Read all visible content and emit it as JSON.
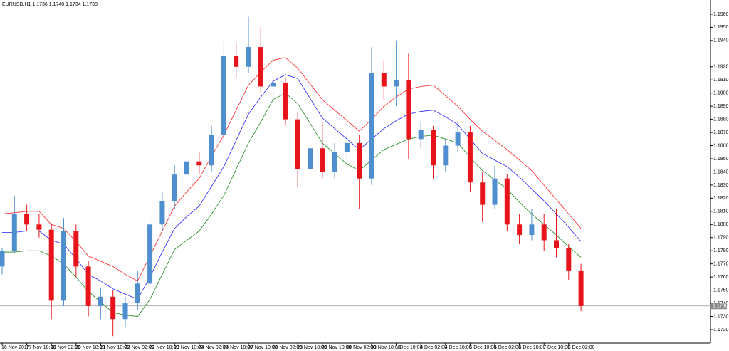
{
  "chart_data": {
    "type": "candlestick",
    "title": "EURUSD,H1  1.1736 1.1740 1.1734 1.1738",
    "categories": [
      "16 Nov 2017",
      null,
      "17 Nov 10:00",
      null,
      "20 Nov 02:00",
      null,
      "20 Nov 18:00",
      null,
      "21 Nov 10:00",
      null,
      "22 Nov 02:00",
      null,
      "22 Nov 18:00",
      null,
      "23 Nov 10:00",
      null,
      "24 Nov 02:00",
      null,
      "24 Nov 18:00",
      null,
      "27 Nov 10:00",
      null,
      "28 Nov 02:00",
      null,
      "28 Nov 18:00",
      null,
      "29 Nov 10:00",
      null,
      "30 Nov 02:00",
      null,
      "30 Nov 18:00",
      null,
      "1 Dec 10:00",
      null,
      "4 Dec 02:00",
      null,
      "4 Dec 18:00",
      null,
      "5 Dec 10:00",
      null,
      "6 Dec 02:00",
      null,
      "6 Dec 18:00",
      null,
      "7 Dec 10:00",
      null,
      "8 Dec 02:00",
      null
    ],
    "open": [
      1.1768,
      1.178,
      1.1808,
      1.18,
      1.1796,
      1.1742,
      1.1795,
      1.1768,
      1.1738,
      1.1745,
      1.1728,
      1.174,
      1.1755,
      1.18,
      1.1818,
      1.1838,
      1.1848,
      1.1845,
      1.1868,
      1.1928,
      1.192,
      1.1935,
      1.1905,
      1.1908,
      1.188,
      1.1842,
      1.1858,
      1.184,
      1.1855,
      1.1862,
      1.1835,
      1.1915,
      1.1905,
      1.191,
      1.1865,
      1.1872,
      1.1845,
      1.186,
      1.187,
      1.1832,
      1.1815,
      1.1835,
      1.18,
      1.1792,
      1.18,
      1.1788,
      1.1782,
      1.1765
    ],
    "high": [
      1.1782,
      1.1822,
      1.1815,
      1.1808,
      1.18,
      1.1805,
      1.18,
      1.1772,
      1.1752,
      1.175,
      1.1745,
      1.1765,
      1.1805,
      1.1825,
      1.1845,
      1.1852,
      1.1855,
      1.1875,
      1.194,
      1.1938,
      1.1958,
      1.195,
      1.1912,
      1.1912,
      1.1885,
      1.1862,
      1.1878,
      1.1862,
      1.187,
      1.1868,
      1.1935,
      1.1925,
      1.194,
      1.193,
      1.1878,
      1.1875,
      1.1865,
      1.1878,
      1.1875,
      1.184,
      1.1845,
      1.1838,
      1.1808,
      1.1812,
      1.1808,
      1.1812,
      1.1785,
      1.177
    ],
    "low": [
      1.1762,
      1.1778,
      1.1795,
      1.179,
      1.1728,
      1.1738,
      1.176,
      1.173,
      1.1728,
      1.1715,
      1.1722,
      1.1735,
      1.175,
      1.1795,
      1.1812,
      1.183,
      1.1838,
      1.184,
      1.1865,
      1.1912,
      1.1915,
      1.19,
      1.1895,
      1.1875,
      1.1828,
      1.1838,
      1.1835,
      1.1835,
      1.1845,
      1.1812,
      1.183,
      1.1895,
      1.189,
      1.185,
      1.1858,
      1.1835,
      1.184,
      1.1855,
      1.1825,
      1.1802,
      1.1812,
      1.1795,
      1.1785,
      1.1788,
      1.178,
      1.1775,
      1.1758,
      1.1734
    ],
    "close": [
      1.178,
      1.1808,
      1.18,
      1.1796,
      1.1742,
      1.1795,
      1.1768,
      1.1738,
      1.1745,
      1.1728,
      1.174,
      1.1755,
      1.18,
      1.1818,
      1.1838,
      1.1848,
      1.1845,
      1.1868,
      1.1928,
      1.192,
      1.1935,
      1.1905,
      1.1908,
      1.188,
      1.1842,
      1.1858,
      1.184,
      1.1855,
      1.1862,
      1.1835,
      1.1915,
      1.1905,
      1.191,
      1.1865,
      1.1872,
      1.1845,
      1.186,
      1.187,
      1.1832,
      1.1815,
      1.1835,
      1.18,
      1.1792,
      1.18,
      1.1788,
      1.1782,
      1.1765,
      1.1738
    ],
    "up_color": "#4f8fd0",
    "down_color": "#e8141b",
    "series": [
      {
        "color": "#ff2020",
        "values": [
          1.1808,
          1.1809,
          1.181,
          1.181,
          1.18,
          1.1797,
          1.1787,
          1.1776,
          1.1772,
          1.1768,
          1.1762,
          1.1757,
          1.1776,
          1.1795,
          1.1814,
          1.1825,
          1.1835,
          1.1852,
          1.1868,
          1.1887,
          1.1906,
          1.1916,
          1.1925,
          1.1927,
          1.1919,
          1.1907,
          1.1895,
          1.1887,
          1.1879,
          1.1871,
          1.188,
          1.189,
          1.1897,
          1.1903,
          1.1905,
          1.1906,
          1.1898,
          1.189,
          1.188,
          1.1871,
          1.1864,
          1.1857,
          1.1849,
          1.1841,
          1.183,
          1.1819,
          1.1808,
          1.1797
        ]
      },
      {
        "color": "#2020ff",
        "values": [
          1.1794,
          1.1794,
          1.1795,
          1.1795,
          1.1788,
          1.1785,
          1.1774,
          1.1762,
          1.1757,
          1.1751,
          1.1747,
          1.1743,
          1.176,
          1.1779,
          1.1797,
          1.1806,
          1.1814,
          1.1829,
          1.1844,
          1.1864,
          1.1884,
          1.1897,
          1.1909,
          1.1914,
          1.1911,
          1.1896,
          1.1881,
          1.1873,
          1.1865,
          1.1857,
          1.1865,
          1.1873,
          1.1879,
          1.1884,
          1.1886,
          1.1887,
          1.1882,
          1.1876,
          1.1865,
          1.1854,
          1.1849,
          1.1844,
          1.1836,
          1.1827,
          1.1818,
          1.1808,
          1.1798,
          1.1787
        ]
      },
      {
        "color": "#1a8a1a",
        "values": [
          1.1779,
          1.1779,
          1.178,
          1.178,
          1.1776,
          1.177,
          1.176,
          1.1749,
          1.1741,
          1.1733,
          1.1731,
          1.173,
          1.1743,
          1.1762,
          1.1781,
          1.1788,
          1.1795,
          1.1808,
          1.1822,
          1.1842,
          1.1862,
          1.1878,
          1.1895,
          1.19,
          1.1892,
          1.1877,
          1.1862,
          1.1854,
          1.1846,
          1.1841,
          1.1849,
          1.1857,
          1.1861,
          1.1865,
          1.1867,
          1.1868,
          1.1865,
          1.1862,
          1.1851,
          1.1841,
          1.1834,
          1.1827,
          1.1817,
          1.1808,
          1.18,
          1.1792,
          1.1783,
          1.1775
        ]
      }
    ],
    "current_price": 1.1738,
    "ylim": [
      1.17097,
      1.19708
    ],
    "yticks": [
      {
        "value": 1.196,
        "label": "1.1960"
      },
      {
        "value": 1.195,
        "label": "1.1950"
      },
      {
        "value": 1.194,
        "label": "1.1940"
      },
      {
        "value": 1.192,
        "label": "1.1920"
      },
      {
        "value": 1.191,
        "label": "1.1910"
      },
      {
        "value": 1.19,
        "label": "1.1900"
      },
      {
        "value": 1.189,
        "label": "1.1890"
      },
      {
        "value": 1.188,
        "label": "1.1880"
      },
      {
        "value": 1.187,
        "label": "1.1870"
      },
      {
        "value": 1.186,
        "label": "1.1860"
      },
      {
        "value": 1.185,
        "label": "1.1850"
      },
      {
        "value": 1.184,
        "label": "1.1840"
      },
      {
        "value": 1.183,
        "label": "1.1830"
      },
      {
        "value": 1.182,
        "label": "1.1820"
      },
      {
        "value": 1.181,
        "label": "1.1810"
      },
      {
        "value": 1.18,
        "label": "1.1800"
      },
      {
        "value": 1.179,
        "label": "1.1790"
      },
      {
        "value": 1.178,
        "label": "1.1780"
      },
      {
        "value": 1.177,
        "label": "1.1770"
      },
      {
        "value": 1.176,
        "label": "1.1760"
      },
      {
        "value": 1.175,
        "label": "1.1750"
      },
      {
        "value": 1.174,
        "label": "1.1740"
      },
      {
        "value": 1.173,
        "label": "1.1730"
      },
      {
        "value": 1.172,
        "label": "1.1720"
      }
    ]
  }
}
